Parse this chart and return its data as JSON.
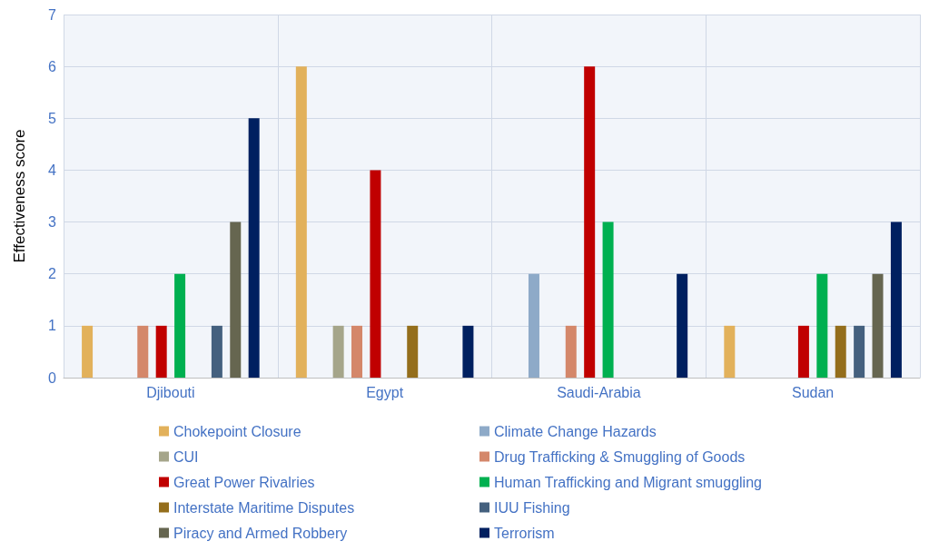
{
  "chart_data": {
    "type": "bar",
    "ylabel": "Effectiveness score",
    "categories": [
      "Djibouti",
      "Egypt",
      "Saudi-Arabia",
      "Sudan"
    ],
    "series": [
      {
        "name": "Chokepoint Closure",
        "color": "#e2b15b",
        "values": [
          1,
          6,
          0,
          1
        ]
      },
      {
        "name": "Climate Change Hazards",
        "color": "#8eaac8",
        "values": [
          0,
          0,
          2,
          0
        ]
      },
      {
        "name": "CUI",
        "color": "#a5a58a",
        "values": [
          0,
          1,
          0,
          0
        ]
      },
      {
        "name": "Drug Trafficking & Smuggling of Goods",
        "color": "#d4876a",
        "values": [
          1,
          1,
          1,
          0
        ]
      },
      {
        "name": "Great Power Rivalries",
        "color": "#c00000",
        "values": [
          1,
          4,
          6,
          1
        ]
      },
      {
        "name": "Human Trafficking and Migrant smuggling",
        "color": "#00b050",
        "values": [
          2,
          0,
          3,
          2
        ]
      },
      {
        "name": "Interstate Maritime Disputes",
        "color": "#946e1c",
        "values": [
          0,
          1,
          0,
          1
        ]
      },
      {
        "name": "IUU Fishing",
        "color": "#44607e",
        "values": [
          1,
          0,
          0,
          1
        ]
      },
      {
        "name": "Piracy and Armed Robbery",
        "color": "#666650",
        "values": [
          3,
          0,
          0,
          2
        ]
      },
      {
        "name": "Terrorism",
        "color": "#002060",
        "values": [
          5,
          1,
          2,
          3
        ]
      }
    ],
    "ylim": [
      0,
      7
    ],
    "yticks": [
      0,
      1,
      2,
      3,
      4,
      5,
      6,
      7
    ],
    "grid": true,
    "legend": "bottom"
  }
}
